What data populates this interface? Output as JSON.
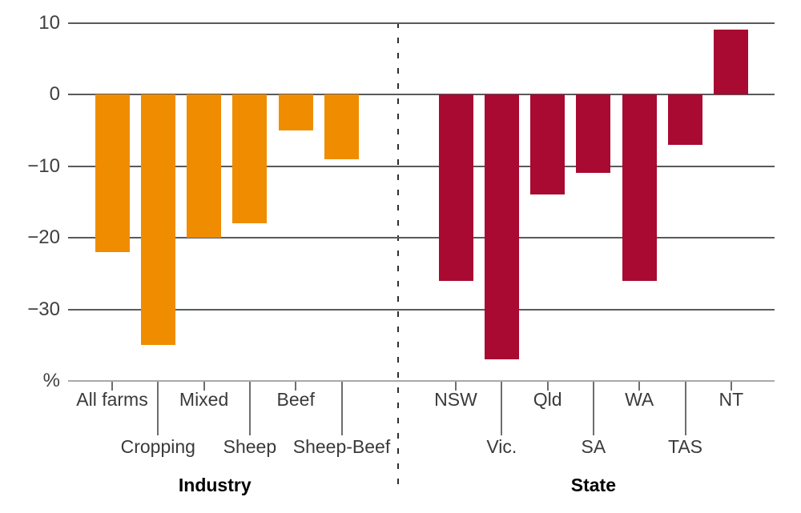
{
  "chart_data": {
    "type": "bar",
    "title": "",
    "ylabel": "%",
    "ylim": [
      -40,
      10
    ],
    "yticks": [
      {
        "label": "10",
        "value": 10
      },
      {
        "label": "0",
        "value": 0
      },
      {
        "label": "−10",
        "value": -10
      },
      {
        "label": "−20",
        "value": -20
      },
      {
        "label": "−30",
        "value": -30
      }
    ],
    "grid": "horizontal",
    "legend": "none",
    "separator": "dashed-vertical-line-between-groups",
    "groups": [
      {
        "label": "Industry",
        "color": "#F08C00",
        "categories": [
          "All farms",
          "Cropping",
          "Mixed",
          "Sheep",
          "Beef",
          "Sheep-Beef"
        ],
        "values": [
          -22,
          -35,
          -20,
          -18,
          -5,
          -9
        ]
      },
      {
        "label": "State",
        "color": "#A80A32",
        "categories": [
          "NSW",
          "Vic.",
          "Qld",
          "SA",
          "WA",
          "TAS",
          "NT"
        ],
        "values": [
          -26,
          -37,
          -14,
          -11,
          -26,
          -7,
          9
        ]
      }
    ]
  },
  "colors": {
    "industry_bar": "#F08C00",
    "state_bar": "#A80A32",
    "gridline": "#595a5c",
    "axis_baseline": "#a7a9ac",
    "tick": "#6d6e71",
    "text": "#3a3a3a"
  }
}
